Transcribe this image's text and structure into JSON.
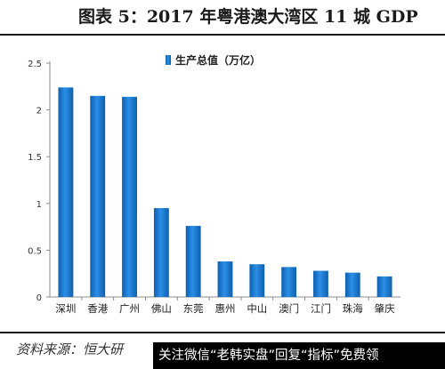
{
  "header": {
    "title": "图表 5：2017 年粤港澳大湾区 11 城 GDP"
  },
  "chart_data": {
    "type": "bar",
    "categories": [
      "深圳",
      "香港",
      "广州",
      "佛山",
      "东莞",
      "惠州",
      "中山",
      "澳门",
      "江门",
      "珠海",
      "肇庆"
    ],
    "series": [
      {
        "name": "生产总值（万亿）",
        "values": [
          2.24,
          2.15,
          2.14,
          0.95,
          0.76,
          0.38,
          0.35,
          0.32,
          0.28,
          0.26,
          0.22
        ]
      }
    ],
    "ylim": [
      0,
      2.5
    ],
    "yticks": [
      "0",
      "0.5",
      "1",
      "1.5",
      "2",
      "2.5"
    ],
    "legend_position": "top",
    "grid": false,
    "bar_color": "#1f7fd6"
  },
  "footer": {
    "source": "资料来源：恒大研",
    "watermark": "关注微信“老韩实盘”回复“指标”免费领"
  }
}
